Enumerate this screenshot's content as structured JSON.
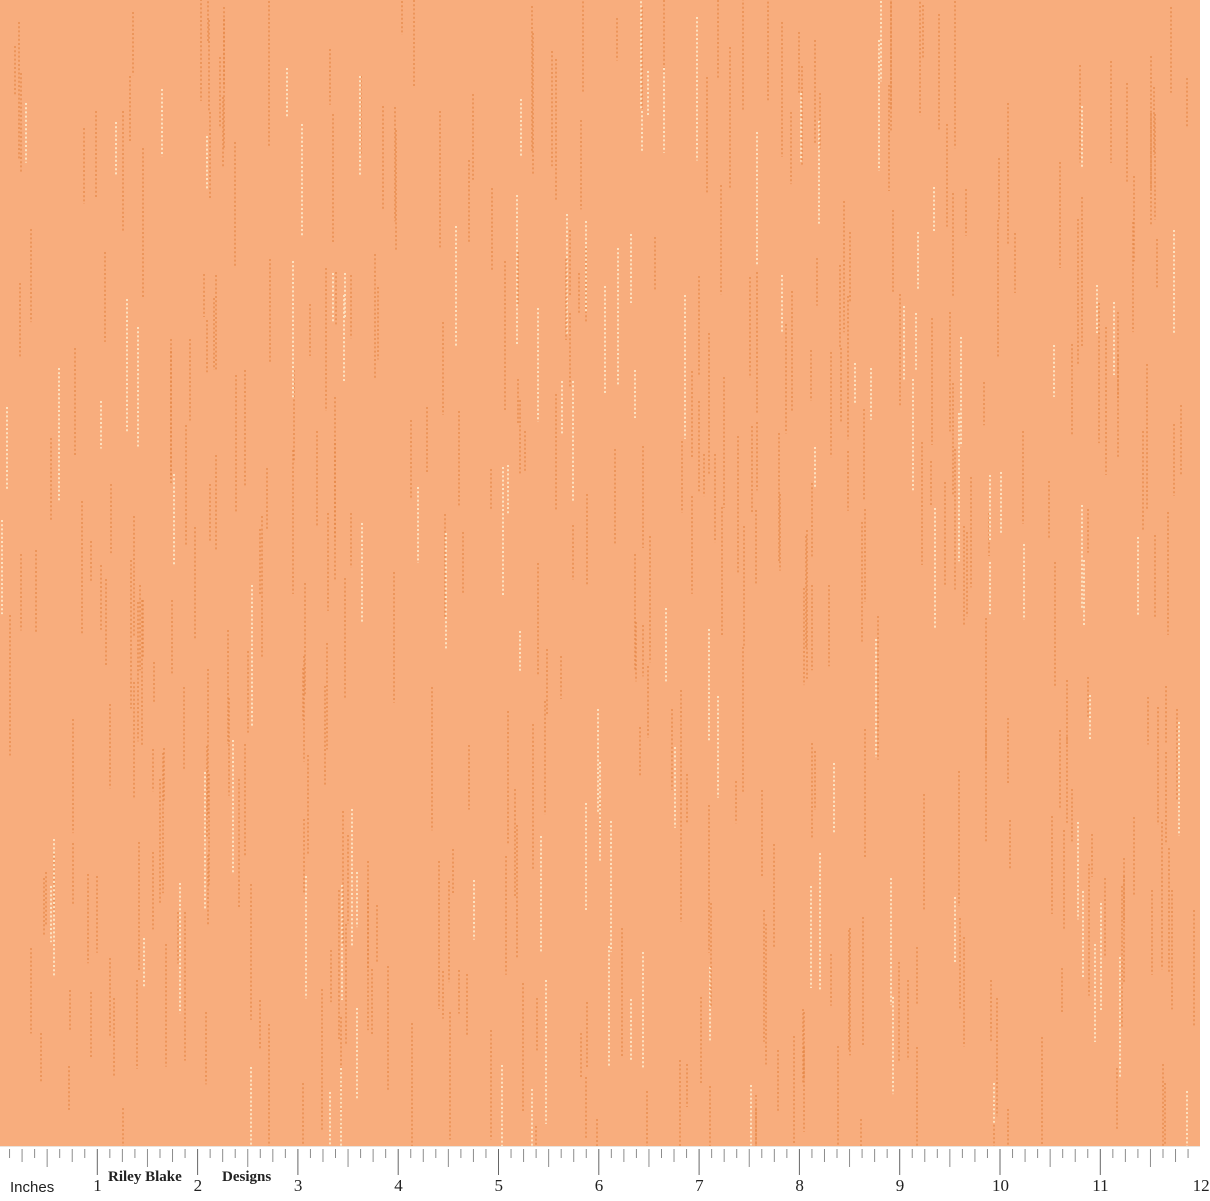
{
  "colors": {
    "background": "#f8ad7d",
    "dash_dark": "#e58645",
    "dash_light": "#fde4c4",
    "ruler": "#ffffff",
    "tick": "#8c8c8c"
  },
  "ruler": {
    "unit_label": "Inches",
    "brand_left": "Riley Blake",
    "brand_right": "Designs",
    "numbers": [
      "1",
      "2",
      "3",
      "4",
      "5",
      "6",
      "7",
      "8",
      "9",
      "10",
      "11",
      "12"
    ]
  }
}
